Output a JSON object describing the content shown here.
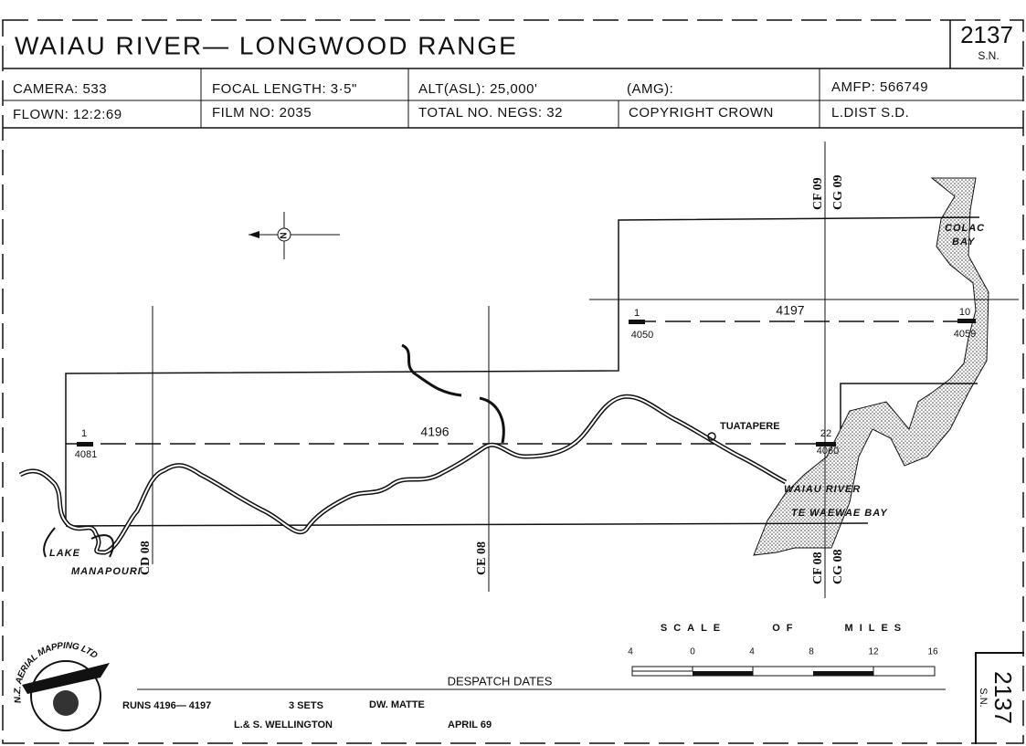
{
  "header": {
    "title": "WAIAU RIVER— LONGWOOD RANGE",
    "sheet": "2137",
    "sheet_suffix": "S.N."
  },
  "info": {
    "rows": [
      [
        "CAMERA: 533",
        "FOCAL LENGTH: 3·5\"",
        "ALT(ASL): 25,000'",
        "(AMG):",
        "AMFP: 566749"
      ],
      [
        "FLOWN: 12:2:69",
        "FILM NO: 2035",
        "TOTAL NO. NEGS: 32",
        "COPYRIGHT CROWN",
        "L.DIST S.D."
      ]
    ]
  },
  "map": {
    "compass": "N",
    "grid_labels": {
      "cf09": "CF 09",
      "cg09": "CG 09",
      "cd08": "CD 08",
      "ce08": "CE 08",
      "cf08": "CF 08",
      "cg08": "CG 08"
    },
    "runs": [
      {
        "number": "4197",
        "start_frame": "1",
        "start_neg": "4050",
        "end_frame": "10",
        "end_neg": "4059"
      },
      {
        "number": "4196",
        "start_frame": "1",
        "start_neg": "4081",
        "end_frame": "22",
        "end_neg": "4060"
      }
    ],
    "places": {
      "colac_bay": [
        "COLAC",
        "BAY"
      ],
      "tuatapere": "TUATAPERE",
      "waiau_river": "WAIAU RIVER",
      "te_waewae_bay": "TE WAEWAE BAY",
      "lake_manapouri": [
        "LAKE",
        "MANAPOURI"
      ]
    }
  },
  "scale": {
    "title": "SCALE OF MILES",
    "ticks": [
      "4",
      "0",
      "4",
      "8",
      "12",
      "16"
    ]
  },
  "footer": {
    "despatch": "DESPATCH DATES",
    "runs": "RUNS 4196— 4197",
    "sets": "3 SETS",
    "finish": "DW. MATTE",
    "office": "L.& S. WELLINGTON",
    "date": "APRIL 69",
    "logo": "N.Z. AERIAL MAPPING LTD",
    "side_sheet": "2137",
    "side_suffix": "S.N."
  }
}
